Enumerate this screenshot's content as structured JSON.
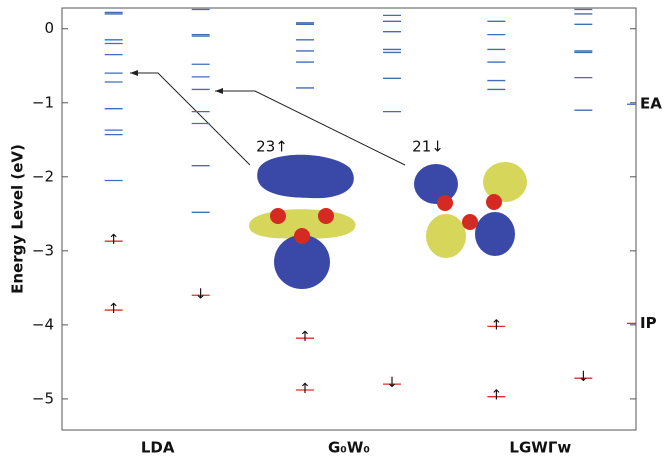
{
  "chart_data": {
    "type": "energy_levels",
    "y_label": "Energy Level (eV)",
    "ylim": [
      -5.42,
      0.28
    ],
    "yticks": [
      0,
      {
        "value": -1,
        "label": "−1"
      },
      {
        "value": -2,
        "label": "−2"
      },
      {
        "value": -3,
        "label": "−3"
      },
      {
        "value": -4,
        "label": "−4"
      },
      {
        "value": -5,
        "label": "−5"
      }
    ],
    "categories": [
      "LDA",
      "G₀W₀",
      "LGWΓw"
    ],
    "unoccupied_color": "#3f6fb5",
    "occupied_color": "#d9302a",
    "columns": [
      {
        "spin": "↑",
        "unoccupied": [
          0.22,
          0.2,
          -0.15,
          -0.2,
          -0.35,
          -0.6,
          -0.72,
          -1.08,
          -1.37,
          -1.43,
          -2.05
        ],
        "occupied": [
          -2.87,
          -3.8
        ]
      },
      {
        "spin": "↓",
        "unoccupied": [
          0.26,
          -0.08,
          -0.1,
          -0.48,
          -0.65,
          -0.82,
          -1.12,
          -1.28,
          -1.85,
          -2.48
        ],
        "occupied": [
          -3.6
        ]
      },
      {
        "spin": "↑",
        "unoccupied": [
          0.08,
          0.06,
          -0.15,
          -0.3,
          -0.45,
          -0.8
        ],
        "occupied": [
          -4.18,
          -4.88
        ]
      },
      {
        "spin": "↓",
        "unoccupied": [
          0.18,
          0.1,
          -0.04,
          -0.28,
          -0.32,
          -0.67,
          -1.12
        ],
        "occupied": [
          -4.8
        ]
      },
      {
        "spin": "↑",
        "unoccupied": [
          0.1,
          -0.08,
          -0.28,
          -0.45,
          -0.7,
          -0.82
        ],
        "occupied": [
          -4.02,
          -4.97
        ]
      },
      {
        "spin": "↓",
        "unoccupied": [
          0.26,
          0.2,
          0.06,
          -0.3,
          -0.32,
          -0.66,
          -1.1
        ],
        "occupied": [
          -4.72
        ]
      }
    ],
    "references": [
      {
        "text": "EA",
        "value": -1.02,
        "color": "#3f6fb5"
      },
      {
        "text": "IP",
        "value": -3.98,
        "color": "#d9302a"
      }
    ],
    "orbital_labels": [
      "23↑",
      "21↓"
    ]
  }
}
